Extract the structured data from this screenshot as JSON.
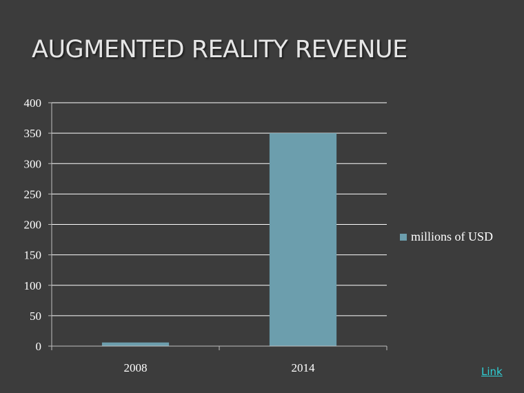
{
  "slide": {
    "title": "AUGMENTED REALITY REVENUE",
    "link_label": "Link"
  },
  "chart_data": {
    "type": "bar",
    "categories": [
      "2008",
      "2014"
    ],
    "series": [
      {
        "name": "millions of USD",
        "values": [
          6,
          350
        ],
        "color": "#6c9ead"
      }
    ],
    "ylim": [
      0,
      400
    ],
    "yticks": [
      0,
      50,
      100,
      150,
      200,
      250,
      300,
      350,
      400
    ],
    "grid": true,
    "legend": "right"
  }
}
